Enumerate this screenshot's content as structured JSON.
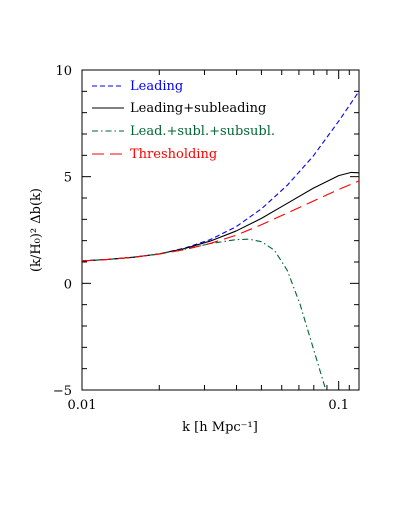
{
  "chart_data": {
    "type": "line",
    "title": "",
    "xlabel": "k  [h Mpc⁻¹]",
    "ylabel": "(k/H₀)² Δb(k)",
    "x_scale": "log",
    "xlim": [
      0.01,
      0.12
    ],
    "ylim": [
      -5,
      10
    ],
    "x_ticks": [
      {
        "value": 0.01,
        "label": "0.01"
      },
      {
        "value": 0.1,
        "label": "0.1"
      }
    ],
    "y_ticks": [
      {
        "value": -5,
        "label": "−5"
      },
      {
        "value": 0,
        "label": "0"
      },
      {
        "value": 5,
        "label": "5"
      },
      {
        "value": 10,
        "label": "10"
      }
    ],
    "grid": false,
    "legend_position": "top-left",
    "series": [
      {
        "name": "Leading",
        "color": "#0000ff",
        "dash": "dashed",
        "x": [
          0.01,
          0.0126,
          0.0158,
          0.02,
          0.0251,
          0.0316,
          0.0398,
          0.0501,
          0.0631,
          0.0794,
          0.1,
          0.12
        ],
        "y": [
          1.05,
          1.12,
          1.22,
          1.38,
          1.65,
          2.05,
          2.65,
          3.5,
          4.6,
          5.95,
          7.6,
          9.0
        ]
      },
      {
        "name": "Leading+subleading",
        "color": "#000000",
        "dash": "solid",
        "x": [
          0.01,
          0.0126,
          0.0158,
          0.02,
          0.0251,
          0.0316,
          0.0398,
          0.0501,
          0.0631,
          0.0794,
          0.1,
          0.112,
          0.12
        ],
        "y": [
          1.05,
          1.12,
          1.22,
          1.38,
          1.63,
          1.98,
          2.45,
          3.05,
          3.75,
          4.45,
          5.05,
          5.2,
          5.18
        ]
      },
      {
        "name": "Lead.+subl.+subsubl.",
        "color": "#006633",
        "dash": "dashdot",
        "x": [
          0.01,
          0.0126,
          0.0158,
          0.02,
          0.0251,
          0.0316,
          0.0398,
          0.0447,
          0.0501,
          0.0562,
          0.0631,
          0.0708,
          0.0794,
          0.0891
        ],
        "y": [
          1.05,
          1.12,
          1.22,
          1.38,
          1.6,
          1.86,
          2.05,
          2.07,
          1.95,
          1.55,
          0.6,
          -1.0,
          -3.0,
          -5.0
        ]
      },
      {
        "name": "Thresholding",
        "color": "#ff0000",
        "dash": "longdash",
        "x": [
          0.01,
          0.0126,
          0.0158,
          0.02,
          0.0251,
          0.0316,
          0.0398,
          0.0501,
          0.0631,
          0.0794,
          0.1,
          0.12
        ],
        "y": [
          1.05,
          1.12,
          1.22,
          1.37,
          1.58,
          1.87,
          2.25,
          2.75,
          3.3,
          3.85,
          4.4,
          4.8
        ]
      }
    ]
  }
}
